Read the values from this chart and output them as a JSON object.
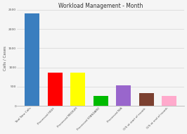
{
  "title": "Workload Management - Month",
  "ylabel": "Calls / Cases",
  "categories": [
    "Total New Calls",
    "Processed HIGH",
    "Processed MEDIUM",
    "Processed STANDARD",
    "Processed N/A",
    "O/S at start of month",
    "O/S at end of month"
  ],
  "values": [
    2400,
    870,
    860,
    270,
    530,
    330,
    255
  ],
  "bar_colors": [
    "#3a7ebf",
    "#ff0000",
    "#ffff00",
    "#00bb00",
    "#9966cc",
    "#7B4030",
    "#ffaacc"
  ],
  "ylim": [
    0,
    2500
  ],
  "yticks": [
    0,
    500,
    1000,
    1500,
    2000,
    2500
  ],
  "background_color": "#f5f5f5",
  "grid_color": "#cccccc",
  "title_fontsize": 5.5,
  "ylabel_fontsize": 4.0,
  "tick_fontsize": 3.2,
  "xtick_fontsize": 3.0
}
